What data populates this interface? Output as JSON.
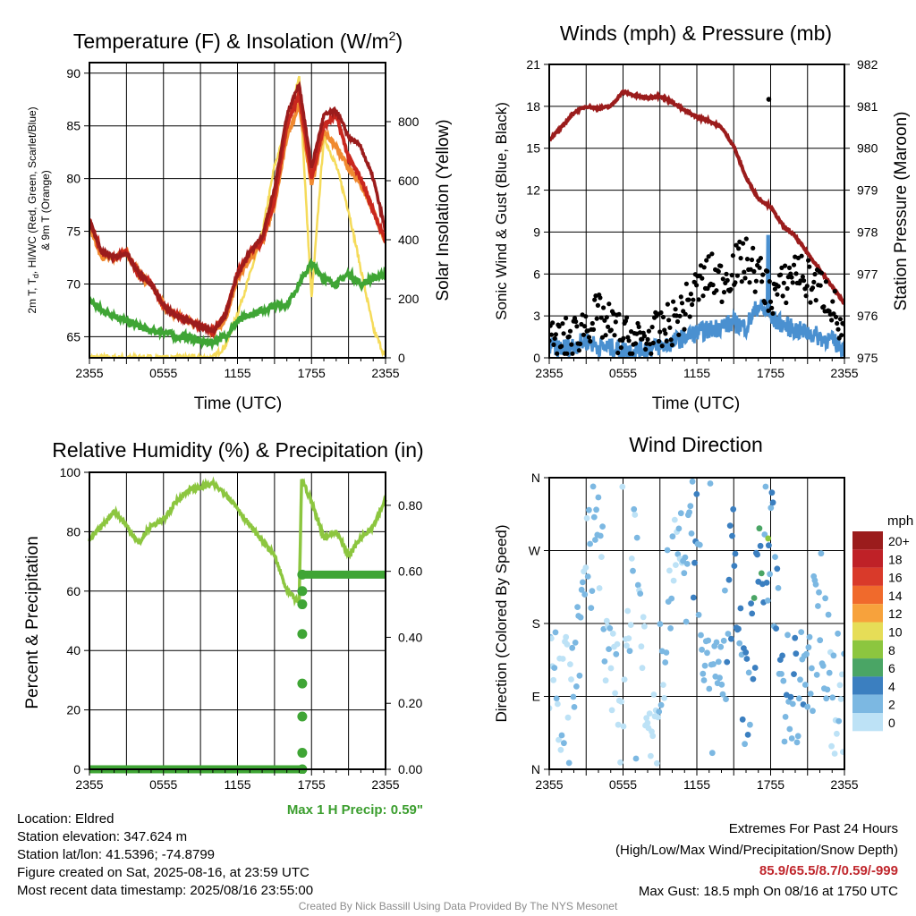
{
  "panels": {
    "temp": {
      "title_main": "Temperature (F) & Insolation (W/m",
      "title_sup": "2",
      "title_end": ")",
      "ylabel_left_line1": "2m T, T",
      "ylabel_left_sub": "d",
      "ylabel_left_rest": ", HI/WC (Red, Green, Scarlet/Blue)",
      "ylabel_left_line2": "& 9m T (Orange)",
      "ylabel_right": "Solar Insolation (Yellow)",
      "xlabel": "Time (UTC)",
      "yticks": [
        "65",
        "70",
        "75",
        "80",
        "85",
        "90"
      ],
      "y2ticks": [
        "0",
        "200",
        "400",
        "600",
        "800"
      ]
    },
    "wind": {
      "title": "Winds (mph) & Pressure (mb)",
      "ylabel_left": "Sonic Wind & Gust (Blue, Black)",
      "ylabel_right": "Station Pressure (Maroon)",
      "xlabel": "Time (UTC)",
      "yticks": [
        "0",
        "3",
        "6",
        "9",
        "12",
        "15",
        "18",
        "21"
      ],
      "y2ticks": [
        "975",
        "976",
        "977",
        "978",
        "979",
        "980",
        "981",
        "982"
      ]
    },
    "rh": {
      "title": "Relative Humidity (%) & Precipitation (in)",
      "ylabel_left": "Percent & Precipitation",
      "yticks": [
        "0",
        "20",
        "40",
        "60",
        "80",
        "100"
      ],
      "y2ticks": [
        "0.00",
        "0.20",
        "0.40",
        "0.60",
        "0.80"
      ],
      "precip_note": "Max 1 H Precip: 0.59\""
    },
    "dir": {
      "title": "Wind Direction",
      "ylabel_left": "Direction (Colored By Speed)",
      "yticks": [
        "N",
        "E",
        "S",
        "W",
        "N"
      ],
      "legend_unit": "mph",
      "legend_labels": [
        "20+",
        "18",
        "16",
        "14",
        "12",
        "10",
        "8",
        "6",
        "4",
        "2",
        "0"
      ],
      "legend_colors": [
        "#9b1c1c",
        "#bf2127",
        "#d93a2a",
        "#f06a2c",
        "#f7a23c",
        "#e6dd57",
        "#8cc63f",
        "#4aa565",
        "#3b7fc0",
        "#7cb8e2",
        "#bde2f6"
      ]
    }
  },
  "xticks": [
    "2355",
    "0555",
    "1155",
    "1755",
    "2355"
  ],
  "colors": {
    "temp_red": "#c9271e",
    "dew_green": "#3fa535",
    "hi_scarlet": "#9b1c1c",
    "t9_orange": "#f08a30",
    "solar_yellow": "#f5db5a",
    "wind_blue": "#4a90d0",
    "gust_black": "#000000",
    "pressure_maroon": "#9b1c1c",
    "rh_green": "#8cc63f",
    "precip_green": "#3fa535",
    "note_green": "#3b9e2e",
    "extremes_red": "#c0272d",
    "credit_gray": "#8c8c8c"
  },
  "info": {
    "location": "Location: Eldred",
    "elevation": "Station elevation: 347.624 m",
    "latlon": "Station lat/lon: 41.5396; -74.8799",
    "created": "Figure created on Sat, 2025-08-16, at 23:59 UTC",
    "recent": "Most recent data timestamp: 2025/08/16 23:55:00"
  },
  "extremes": {
    "title": "Extremes For Past 24 Hours",
    "subtitle": "(High/Low/Max Wind/Precipitation/Snow Depth)",
    "values": "85.9/65.5/8.7/0.59/-999",
    "max_gust": "Max Gust: 18.5 mph On 08/16 at 1750 UTC"
  },
  "credit": "Created By Nick Bassill Using Data Provided By The NYS Mesonet",
  "chart_data": [
    {
      "type": "line",
      "title": "Temperature (F) & Insolation (W/m2)",
      "xlabel": "Time (UTC)",
      "x_hours": [
        0,
        1,
        2,
        3,
        4,
        5,
        6,
        7,
        8,
        9,
        10,
        11,
        12,
        13,
        14,
        15,
        16,
        17,
        18,
        19,
        20,
        21,
        22,
        23,
        24
      ],
      "ylim": [
        63,
        91
      ],
      "y2lim": [
        0,
        1000
      ],
      "series": [
        {
          "name": "2m T",
          "values": [
            76,
            73,
            72.5,
            73,
            71,
            70,
            68,
            67,
            66.5,
            66,
            65.5,
            67,
            71,
            73,
            74,
            78,
            85,
            88,
            80,
            85,
            86,
            82,
            80,
            77,
            74
          ]
        },
        {
          "name": "Td",
          "values": [
            68.5,
            67.5,
            67,
            66.5,
            66,
            65.5,
            65.5,
            65,
            65,
            64.5,
            64.5,
            65,
            66.5,
            67,
            67.5,
            68,
            68,
            70,
            72,
            70.5,
            70,
            71,
            70,
            70.5,
            71
          ]
        },
        {
          "name": "HI/WC",
          "values": [
            76,
            73,
            72.5,
            73,
            71,
            70,
            68,
            67,
            66.5,
            66,
            65.5,
            67,
            71,
            73,
            74.5,
            79,
            86,
            89,
            81,
            86,
            86.5,
            84,
            83,
            80,
            75
          ]
        },
        {
          "name": "9m T",
          "values": [
            75.5,
            72.5,
            72.5,
            73,
            71,
            70,
            68,
            67,
            66.5,
            66,
            65.5,
            66.5,
            70.5,
            72.5,
            74,
            77.5,
            84,
            87,
            79.5,
            84.5,
            83,
            81,
            79.5,
            77,
            74
          ]
        },
        {
          "name": "Solar Insolation",
          "axis": "y2",
          "values": [
            0,
            0,
            0,
            0,
            0,
            0,
            0,
            0,
            0,
            0,
            0,
            40,
            150,
            280,
            420,
            650,
            780,
            950,
            200,
            750,
            650,
            500,
            300,
            100,
            0
          ]
        }
      ]
    },
    {
      "type": "line",
      "title": "Winds (mph) & Pressure (mb)",
      "xlabel": "Time (UTC)",
      "x_hours": [
        0,
        1,
        2,
        3,
        4,
        5,
        6,
        7,
        8,
        9,
        10,
        11,
        12,
        13,
        14,
        15,
        16,
        17,
        18,
        19,
        20,
        21,
        22,
        23,
        24
      ],
      "ylim": [
        0,
        21
      ],
      "y2lim": [
        975,
        982
      ],
      "series": [
        {
          "name": "Sonic Wind",
          "values": [
            0.8,
            0.7,
            0.9,
            1.2,
            0.8,
            0.7,
            0.6,
            0.5,
            0.7,
            0.8,
            1.1,
            1.5,
            1.8,
            2,
            2.3,
            2.5,
            2.2,
            3.8,
            2.8,
            2.4,
            2,
            1.8,
            1.5,
            1.2,
            0.7
          ]
        },
        {
          "name": "Gust",
          "values": [
            1,
            1.2,
            1.5,
            2.5,
            3,
            2.2,
            1.5,
            1.2,
            1.4,
            1.8,
            2.5,
            3.5,
            5,
            6,
            5.5,
            6.5,
            7,
            6,
            4.5,
            5,
            6.5,
            5.5,
            5,
            4,
            1
          ]
        },
        {
          "name": "Station Pressure",
          "axis": "y2",
          "values": [
            980.2,
            980.5,
            980.85,
            981.0,
            980.95,
            981.0,
            981.35,
            981.25,
            981.2,
            981.25,
            981.1,
            980.9,
            980.75,
            980.65,
            980.5,
            980.05,
            979.3,
            978.8,
            978.6,
            978.15,
            977.9,
            977.5,
            977.1,
            976.7,
            976.3
          ]
        }
      ]
    },
    {
      "type": "line",
      "title": "Relative Humidity (%) & Precipitation (in)",
      "x_hours": [
        0,
        1,
        2,
        3,
        4,
        5,
        6,
        7,
        8,
        9,
        10,
        11,
        12,
        13,
        14,
        15,
        16,
        17,
        17.2,
        18,
        19,
        20,
        21,
        22,
        23,
        24
      ],
      "ylim": [
        0,
        100
      ],
      "y2lim": [
        0,
        0.9
      ],
      "series": [
        {
          "name": "Relative Humidity",
          "values": [
            77,
            82,
            87,
            82,
            76,
            82,
            84,
            90,
            94,
            95,
            96,
            93,
            88,
            82,
            77,
            72,
            60,
            56,
            98,
            90,
            78,
            80,
            72,
            78,
            82,
            91
          ]
        },
        {
          "name": "Precipitation",
          "axis": "y2",
          "values": [
            0,
            0,
            0,
            0,
            0,
            0,
            0,
            0,
            0,
            0,
            0,
            0,
            0,
            0,
            0,
            0,
            0,
            0,
            0.05,
            0.59,
            0.59,
            0.59,
            0.59,
            0.59,
            0.59,
            0.59
          ]
        }
      ]
    },
    {
      "type": "scatter",
      "title": "Wind Direction",
      "ylabel": "Direction (Colored By Speed)",
      "yticks": [
        "N",
        "E",
        "S",
        "W",
        "N"
      ],
      "x_hours": [
        0,
        1,
        2,
        3,
        4,
        5,
        6,
        7,
        8,
        9,
        10,
        11,
        12,
        13,
        14,
        15,
        16,
        17,
        18,
        19,
        20,
        21,
        22,
        23,
        24
      ],
      "direction_deg": [
        90,
        95,
        80,
        250,
        300,
        100,
        60,
        310,
        30,
        100,
        270,
        240,
        300,
        60,
        90,
        280,
        60,
        250,
        300,
        90,
        95,
        100,
        220,
        100,
        80
      ],
      "speed_mph": [
        1,
        1,
        2,
        1,
        1,
        1,
        0,
        1,
        0,
        1,
        1,
        2,
        3,
        2,
        2,
        4,
        3,
        5,
        2,
        3,
        3,
        2,
        2,
        1,
        1
      ]
    }
  ]
}
